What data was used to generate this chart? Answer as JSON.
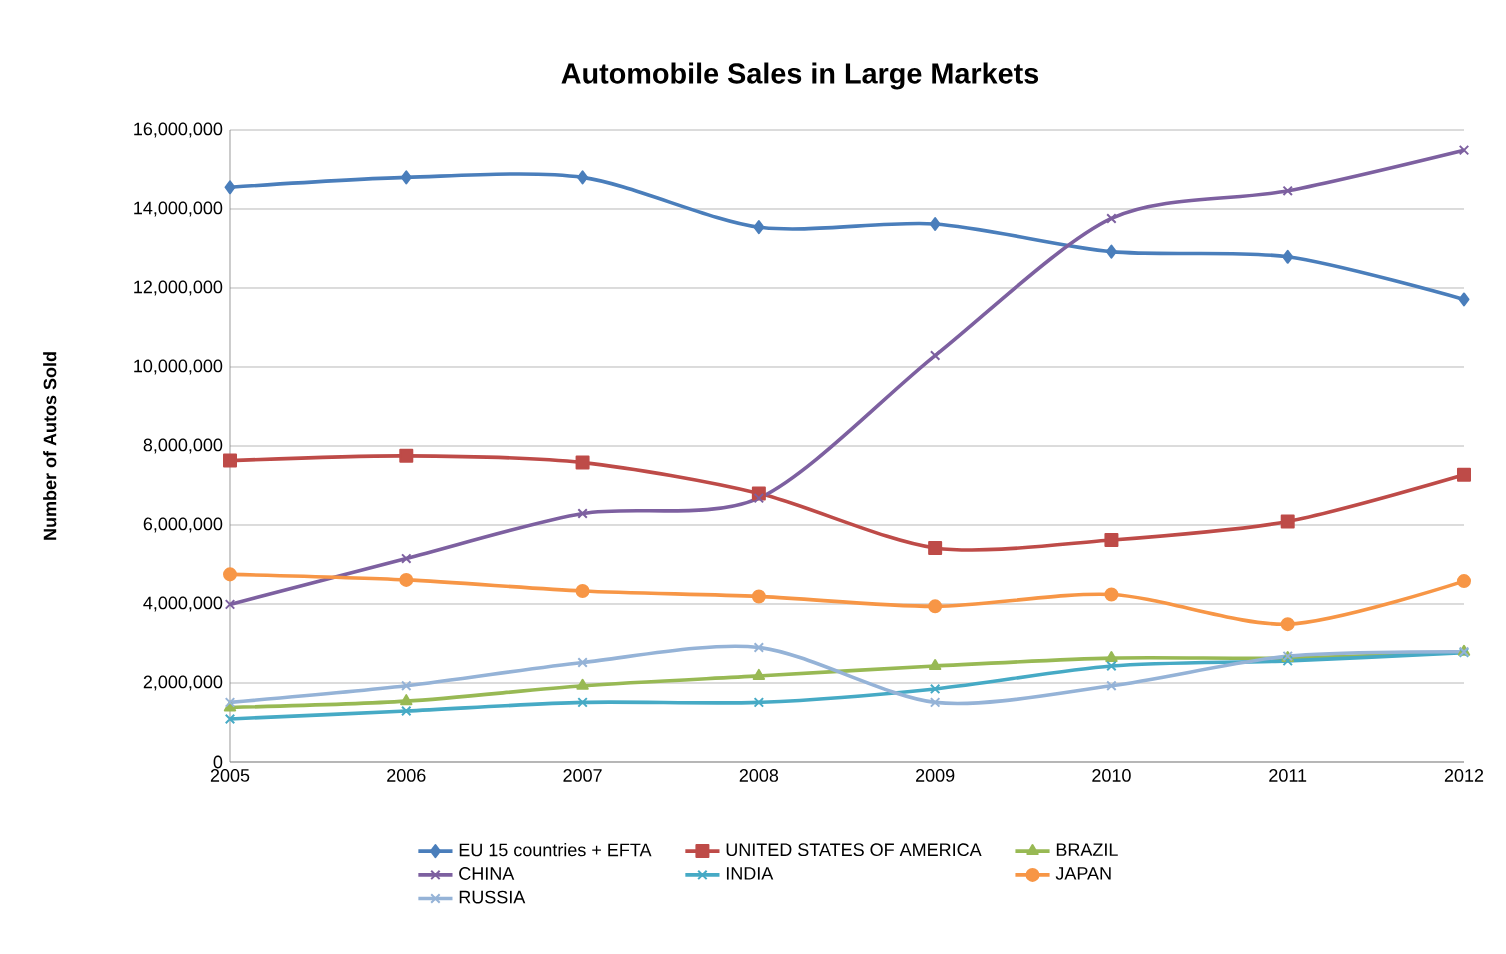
{
  "chart_data": {
    "type": "line",
    "title": "Automobile Sales in Large Markets",
    "ylabel": "Number of Autos Sold",
    "x": [
      2005,
      2006,
      2007,
      2008,
      2009,
      2010,
      2011,
      2012
    ],
    "xlim": [
      2005,
      2012
    ],
    "xticks": [
      2005,
      2006,
      2007,
      2008,
      2009,
      2010,
      2011,
      2012
    ],
    "ylim": [
      0,
      16000000
    ],
    "yticks": [
      0,
      {
        "value": 2000000,
        "label": "2,000,000"
      },
      {
        "value": 4000000,
        "label": "4,000,000"
      },
      {
        "value": 6000000,
        "label": "6,000,000"
      },
      {
        "value": 8000000,
        "label": "8,000,000"
      },
      {
        "value": 10000000,
        "label": "10,000,000"
      },
      {
        "value": 12000000,
        "label": "12,000,000"
      },
      {
        "value": 14000000,
        "label": "14,000,000"
      },
      {
        "value": 16000000,
        "label": "16,000,000"
      }
    ],
    "grid": "y",
    "legend": "bottom",
    "line_style": "solid",
    "series": [
      {
        "name": "EU 15 countries + EFTA",
        "color": "#4a7ebb",
        "marker": "diamond",
        "values": [
          14550000,
          14800000,
          14800000,
          13540000,
          13620000,
          12920000,
          12790000,
          11710000
        ]
      },
      {
        "name": "UNITED STATES OF AMERICA",
        "color": "#be4b48",
        "marker": "square",
        "values": [
          7630000,
          7750000,
          7580000,
          6800000,
          5420000,
          5620000,
          6090000,
          7270000
        ]
      },
      {
        "name": "BRAZIL",
        "color": "#98b954",
        "marker": "triangle",
        "values": [
          1380000,
          1540000,
          1930000,
          2180000,
          2430000,
          2630000,
          2630000,
          2790000
        ]
      },
      {
        "name": "CHINA",
        "color": "#7d60a0",
        "marker": "cross",
        "values": [
          3990000,
          5150000,
          6290000,
          6680000,
          10290000,
          13760000,
          14460000,
          15490000
        ]
      },
      {
        "name": "INDIA",
        "color": "#46aac5",
        "marker": "cross",
        "values": [
          1090000,
          1290000,
          1510000,
          1510000,
          1850000,
          2430000,
          2560000,
          2770000
        ]
      },
      {
        "name": "JAPAN",
        "color": "#f79646",
        "marker": "circle",
        "values": [
          4750000,
          4610000,
          4330000,
          4190000,
          3940000,
          4240000,
          3490000,
          4580000
        ]
      },
      {
        "name": "RUSSIA",
        "color": "#95b3d7",
        "marker": "cross",
        "values": [
          1510000,
          1930000,
          2520000,
          2900000,
          1510000,
          1930000,
          2680000,
          2790000
        ]
      }
    ]
  }
}
